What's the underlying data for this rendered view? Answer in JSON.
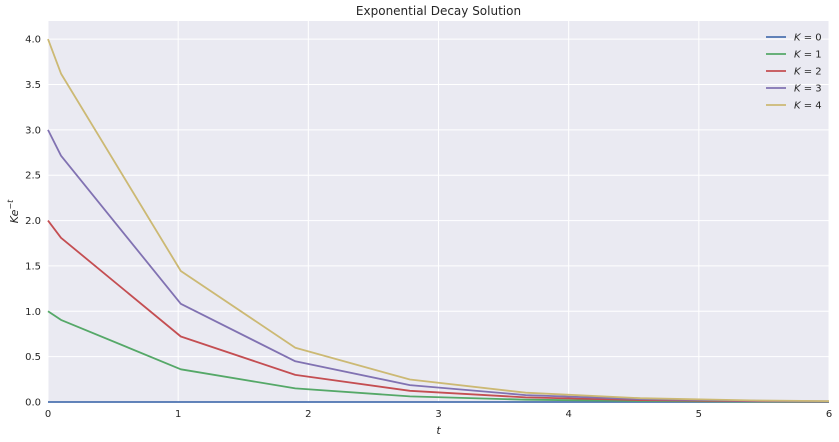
{
  "chart_data": {
    "type": "line",
    "title": "Exponential Decay Solution",
    "xlabel": "t",
    "ylabel_base": "Ke",
    "ylabel_sup": "−t",
    "xlim": [
      0,
      6
    ],
    "ylim": [
      0,
      4.2
    ],
    "xticks": [
      0,
      1,
      2,
      3,
      4,
      5,
      6
    ],
    "yticks": [
      0.0,
      0.5,
      1.0,
      1.5,
      2.0,
      2.5,
      3.0,
      3.5,
      4.0
    ],
    "ytick_labels": [
      "0.0",
      "0.5",
      "1.0",
      "1.5",
      "2.0",
      "2.5",
      "3.0",
      "3.5",
      "4.0"
    ],
    "grid": true,
    "legend_position": "top-right",
    "x": [
      0,
      0.1,
      1.02,
      1.9,
      2.78,
      3.67,
      4.55,
      5.44,
      6.0
    ],
    "series": [
      {
        "name": "K = 0",
        "legend_var": "K",
        "legend_val": "0",
        "color": "#4c72b0",
        "values": [
          0,
          0,
          0,
          0,
          0,
          0,
          0,
          0,
          0
        ]
      },
      {
        "name": "K = 1",
        "legend_var": "K",
        "legend_val": "1",
        "color": "#55a868",
        "values": [
          1.0,
          0.905,
          0.361,
          0.15,
          0.062,
          0.025,
          0.011,
          0.004,
          0.0025
        ]
      },
      {
        "name": "K = 2",
        "legend_var": "K",
        "legend_val": "2",
        "color": "#c44e52",
        "values": [
          2.0,
          1.81,
          0.722,
          0.299,
          0.124,
          0.051,
          0.021,
          0.009,
          0.005
        ]
      },
      {
        "name": "K = 3",
        "legend_var": "K",
        "legend_val": "3",
        "color": "#8172b2",
        "values": [
          3.0,
          2.715,
          1.083,
          0.449,
          0.186,
          0.076,
          0.032,
          0.013,
          0.0074
        ]
      },
      {
        "name": "K = 4",
        "legend_var": "K",
        "legend_val": "4",
        "color": "#ccb974",
        "values": [
          4.0,
          3.62,
          1.444,
          0.598,
          0.248,
          0.102,
          0.042,
          0.017,
          0.0099
        ]
      }
    ]
  }
}
